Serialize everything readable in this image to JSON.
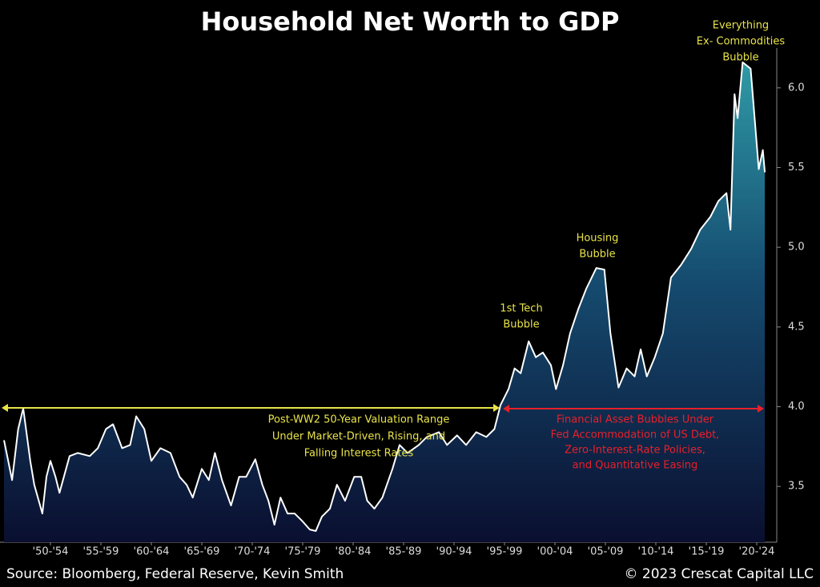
{
  "chart_data": {
    "type": "area",
    "title": "Household Net Worth to GDP",
    "source": "Source: Bloomberg, Federal Reserve, Kevin Smith",
    "copyright": "© 2023 Crescat Capital LLC",
    "color": "#ffffff",
    "x": [
      1947.9,
      1948.7,
      1949.3,
      1949.8,
      1950.5,
      1950.9,
      1951.7,
      1952.1,
      1952.5,
      1953.0,
      1953.4,
      1954.4,
      1955.2,
      1956.4,
      1957.2,
      1958.0,
      1958.7,
      1959.6,
      1960.4,
      1961.0,
      1961.8,
      1962.5,
      1963.4,
      1964.4,
      1965.3,
      1966.0,
      1966.6,
      1967.5,
      1968.2,
      1968.8,
      1969.5,
      1970.4,
      1971.2,
      1971.9,
      1972.8,
      1973.5,
      1974.1,
      1974.7,
      1975.3,
      1976.0,
      1976.7,
      1977.5,
      1978.2,
      1978.8,
      1979.4,
      1980.2,
      1980.9,
      1981.7,
      1982.6,
      1983.3,
      1983.9,
      1984.6,
      1985.4,
      1986.4,
      1987.1,
      1987.9,
      1989.0,
      1989.8,
      1991.0,
      1991.8,
      1992.8,
      1993.7,
      1994.7,
      1995.7,
      1996.5,
      1997.1,
      1997.9,
      1998.5,
      1999.1,
      1999.9,
      2000.6,
      2001.3,
      2002.1,
      2002.6,
      2003.3,
      2004.0,
      2004.8,
      2005.6,
      2006.6,
      2007.4,
      2008.0,
      2008.8,
      2009.6,
      2010.4,
      2011.0,
      2011.6,
      2012.4,
      2013.2,
      2014.0,
      2015.0,
      2016.0,
      2016.9,
      2017.9,
      2018.7,
      2019.5,
      2019.9,
      2020.3,
      2020.6,
      2021.1,
      2021.9,
      2022.7,
      2023.1,
      2023.3
    ],
    "values": [
      3.79,
      3.54,
      3.86,
      3.99,
      3.66,
      3.51,
      3.33,
      3.56,
      3.66,
      3.56,
      3.46,
      3.69,
      3.71,
      3.69,
      3.74,
      3.86,
      3.89,
      3.74,
      3.76,
      3.94,
      3.86,
      3.66,
      3.74,
      3.71,
      3.56,
      3.51,
      3.43,
      3.61,
      3.54,
      3.71,
      3.54,
      3.38,
      3.56,
      3.56,
      3.67,
      3.51,
      3.41,
      3.26,
      3.43,
      3.33,
      3.33,
      3.28,
      3.23,
      3.22,
      3.31,
      3.36,
      3.51,
      3.41,
      3.56,
      3.56,
      3.41,
      3.36,
      3.43,
      3.61,
      3.76,
      3.71,
      3.76,
      3.81,
      3.84,
      3.76,
      3.82,
      3.76,
      3.84,
      3.81,
      3.86,
      4.01,
      4.11,
      4.24,
      4.21,
      4.41,
      4.31,
      4.34,
      4.26,
      4.11,
      4.26,
      4.46,
      4.61,
      4.74,
      4.87,
      4.86,
      4.46,
      4.12,
      4.24,
      4.19,
      4.36,
      4.19,
      4.31,
      4.46,
      4.81,
      4.89,
      4.99,
      5.11,
      5.19,
      5.29,
      5.34,
      5.11,
      5.96,
      5.81,
      6.16,
      6.12,
      5.49,
      5.61,
      5.47
    ],
    "xlim": [
      1947.5,
      2025.0
    ],
    "xticks": [
      {
        "value": 1952.5,
        "label": "'50-'54"
      },
      {
        "value": 1957.5,
        "label": "'55-'59"
      },
      {
        "value": 1962.5,
        "label": "'60-'64"
      },
      {
        "value": 1967.5,
        "label": "'65-'69"
      },
      {
        "value": 1972.5,
        "label": "'70-'74"
      },
      {
        "value": 1977.5,
        "label": "'75-'79"
      },
      {
        "value": 1982.5,
        "label": "'80-'84"
      },
      {
        "value": 1987.5,
        "label": "'85-'89"
      },
      {
        "value": 1992.5,
        "label": "'90-'94"
      },
      {
        "value": 1997.5,
        "label": "'95-'99"
      },
      {
        "value": 2002.5,
        "label": "'00-'04"
      },
      {
        "value": 2007.5,
        "label": "'05-'09"
      },
      {
        "value": 2012.5,
        "label": "'10-'14"
      },
      {
        "value": 2017.5,
        "label": "'15-'19"
      },
      {
        "value": 2022.5,
        "label": "'20-'24"
      }
    ],
    "ylim": [
      3.15,
      6.25
    ],
    "yticks": [
      {
        "value": 3.5,
        "label": "3.5"
      },
      {
        "value": 4.0,
        "label": "4.0"
      },
      {
        "value": 4.5,
        "label": "4.5"
      },
      {
        "value": 5.0,
        "label": "5.0"
      },
      {
        "value": 5.5,
        "label": "5.5"
      },
      {
        "value": 6.0,
        "label": "6.0"
      }
    ],
    "annotations": [
      {
        "lines": [
          "Everything",
          "Ex- Commodities",
          "Bubble"
        ],
        "color": "#e8e34a"
      },
      {
        "lines": [
          "Housing",
          "Bubble"
        ],
        "color": "#e8e34a"
      },
      {
        "lines": [
          "1st Tech",
          "Bubble"
        ],
        "color": "#e8e34a"
      },
      {
        "lines": [
          "Post-WW2 50-Year Valuation Range",
          "Under Market-Driven, Rising, and",
          "Falling Interest Rates"
        ],
        "color": "#e8e34a"
      },
      {
        "lines": [
          "Financial Asset Bubbles Under",
          "Fed Accommodation of US Debt,",
          "Zero-Interest-Rate Policies,",
          "and Quantitative Easing"
        ],
        "color": "#e8202a"
      }
    ]
  }
}
